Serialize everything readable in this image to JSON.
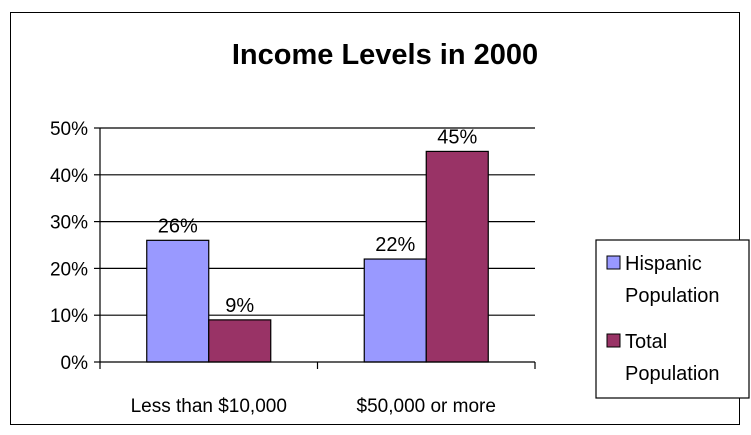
{
  "chart_data": {
    "type": "bar",
    "title": "Income Levels in 2000",
    "xlabel": "",
    "ylabel": "",
    "categories": [
      "Less than $10,000",
      "$50,000 or more"
    ],
    "series": [
      {
        "name": "Hispanic Population",
        "legend_lines": [
          "Hispanic",
          "Population"
        ],
        "values": [
          26,
          22
        ],
        "labels": [
          "26%",
          "22%"
        ],
        "color": "#9999FF"
      },
      {
        "name": "Total Population",
        "legend_lines": [
          "Total",
          "Population"
        ],
        "values": [
          9,
          45
        ],
        "labels": [
          "9%",
          "45%"
        ],
        "color": "#993366"
      }
    ],
    "ylim": [
      0,
      50
    ],
    "yticks": [
      0,
      10,
      20,
      30,
      40,
      50
    ],
    "ytick_labels": [
      "0%",
      "10%",
      "20%",
      "30%",
      "40%",
      "50%"
    ],
    "grid": true,
    "legend_position": "right"
  }
}
